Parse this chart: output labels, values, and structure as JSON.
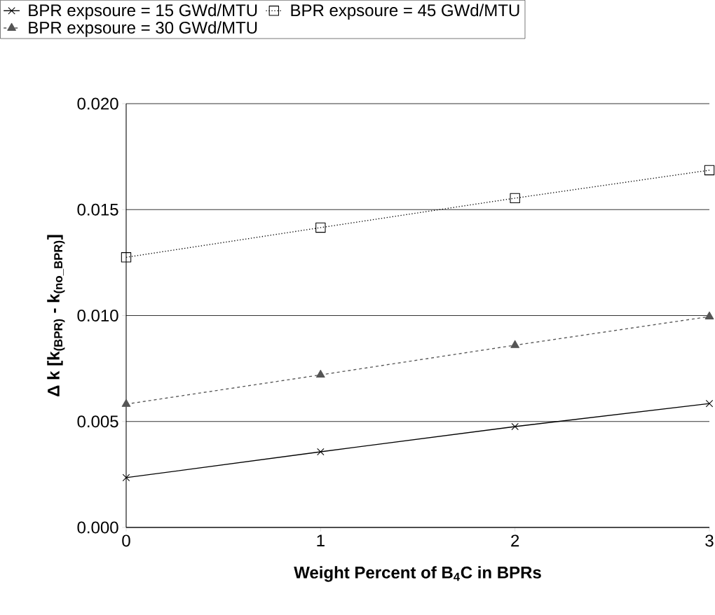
{
  "chart_data": {
    "type": "line",
    "xlabel": "**Weight Percent of B$_{4}$C in BPRs**",
    "ylabel": "**Δ k [k$_{(BPR)}$ - k$_{(no_BPR)}$]**",
    "x": [
      0,
      1,
      2,
      3
    ],
    "series": [
      {
        "name": "BPR expsoure = 15 GWd/MTU",
        "color": "#000000",
        "marker": "cross",
        "line_style": "solid",
        "values": [
          0.00235,
          0.00357,
          0.00476,
          0.00585
        ]
      },
      {
        "name": "BPR expsoure = 45 GWd/MTU",
        "color": "#000000",
        "marker": "square",
        "line_style": "dotted",
        "values": [
          0.01275,
          0.01415,
          0.01554,
          0.01686
        ]
      },
      {
        "name": "BPR expsoure = 30 GWd/MTU",
        "color": "#555555",
        "marker": "triangle",
        "line_style": "dashed",
        "values": [
          0.00582,
          0.0072,
          0.0086,
          0.00995
        ]
      }
    ],
    "xlim": [
      0,
      3
    ],
    "xticks": [
      0,
      1,
      2,
      3
    ],
    "ylim": [
      0,
      0.02
    ],
    "yticks": [
      {
        "value": 0,
        "label": "0.000"
      },
      {
        "value": 0.005,
        "label": "0.005"
      },
      {
        "value": 0.01,
        "label": "0.010"
      },
      {
        "value": 0.015,
        "label": "0.015"
      },
      {
        "value": 0.02,
        "label": "0.020"
      }
    ],
    "grid": "y",
    "legend": "top"
  }
}
